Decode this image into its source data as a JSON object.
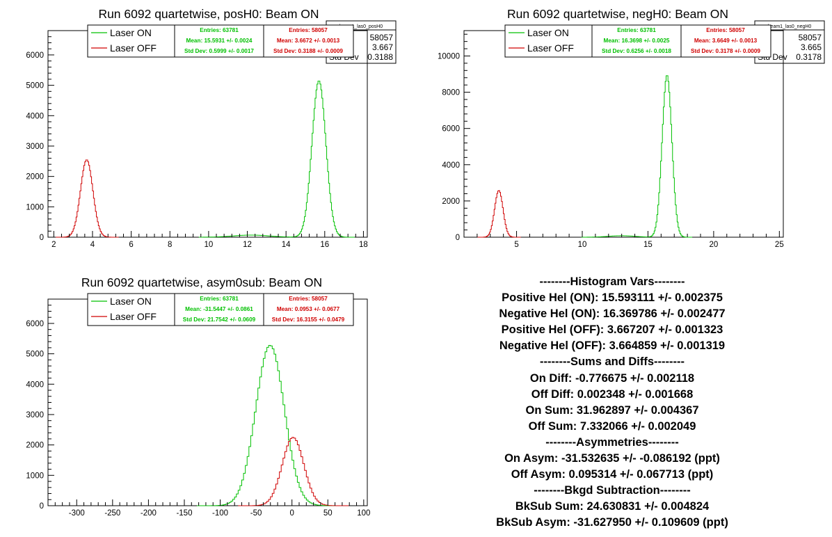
{
  "panels": [
    {
      "title": "Run 6092 quartetwise, posH0: Beam ON",
      "hidden_box": {
        "name": "beam1_las0_posH0",
        "rows": [
          [
            "",
            "58057"
          ],
          [
            "",
            "3.667"
          ],
          [
            "Std Dev",
            "0.3188"
          ]
        ]
      },
      "legend": [
        "Laser ON",
        "Laser OFF"
      ],
      "stats_on": {
        "entries": "Entries: 63781",
        "mean": "Mean: 15.5931 +/- 0.0024",
        "std": "Std Dev: 0.5999 +/- 0.0017"
      },
      "stats_off": {
        "entries": "Entries: 58057",
        "mean": "Mean: 3.6672 +/- 0.0013",
        "std": "Std Dev: 0.3188 +/- 0.0009"
      }
    },
    {
      "title": "Run 6092 quartetwise, negH0: Beam ON",
      "hidden_box": {
        "name": "beam1_las0_negH0",
        "rows": [
          [
            "",
            "58057"
          ],
          [
            "",
            "3.665"
          ],
          [
            "Std Dev",
            "0.3178"
          ]
        ]
      },
      "legend": [
        "Laser ON",
        "Laser OFF"
      ],
      "stats_on": {
        "entries": "Entries: 63781",
        "mean": "Mean: 16.3698 +/- 0.0025",
        "std": "Std Dev: 0.6256 +/- 0.0018"
      },
      "stats_off": {
        "entries": "Entries: 58057",
        "mean": "Mean: 3.6649 +/- 0.0013",
        "std": "Std Dev: 0.3178 +/- 0.0009"
      }
    },
    {
      "title": "Run 6092 quartetwise, asym0sub: Beam ON",
      "hidden_box": null,
      "legend": [
        "Laser ON",
        "Laser OFF"
      ],
      "stats_on": {
        "entries": "Entries: 63781",
        "mean": "Mean: -31.5447 +/- 0.0861",
        "std": "Std Dev: 21.7542 +/- 0.0609"
      },
      "stats_off": {
        "entries": "Entries: 58057",
        "mean": "Mean: 0.0953 +/- 0.0677",
        "std": "Std Dev: 16.3155 +/- 0.0479"
      }
    }
  ],
  "histogram_vars": {
    "lines": [
      "--------Histogram Vars--------",
      "Positive Hel (ON): 15.593111 +/- 0.002375",
      "Negative Hel (ON): 16.369786 +/- 0.002477",
      "Positive Hel (OFF): 3.667207 +/- 0.001323",
      "Negative Hel (OFF): 3.664859 +/- 0.001319",
      "--------Sums and Diffs--------",
      "On Diff: -0.776675 +/- 0.002118",
      "Off Diff: 0.002348 +/- 0.001668",
      "On Sum: 31.962897 +/- 0.004367",
      "Off Sum: 7.332066 +/- 0.002049",
      "--------Asymmetries--------",
      "On Asym: -31.532635 +/- -0.086192 (ppt)",
      "Off Asym: 0.095314 +/- 0.067713 (ppt)",
      "--------Bkgd Subtraction--------",
      "BkSub Sum: 24.630831 +/- 0.004824",
      "BkSub Asym: -31.627950 +/- 0.109609 (ppt)"
    ]
  },
  "colors": {
    "laser_on": "#00c000",
    "laser_off": "#d00000",
    "axis": "#000000"
  },
  "chart_data": [
    {
      "type": "histogram",
      "title": "Run 6092 quartetwise, posH0: Beam ON",
      "xlim": [
        1.7,
        18.2
      ],
      "ylim": [
        0,
        6800
      ],
      "xticks": [
        2,
        4,
        6,
        8,
        10,
        12,
        14,
        16,
        18
      ],
      "yticks": [
        0,
        1000,
        2000,
        3000,
        4000,
        5000,
        6000
      ],
      "grid": false,
      "legend_position": "top",
      "series": [
        {
          "name": "Laser ON",
          "color": "#00c000",
          "shape": "gaussian",
          "mean": 15.7,
          "sigma": 0.36,
          "peak": 5150,
          "bin_width": 0.05,
          "bump": {
            "mean": 12.2,
            "sigma": 0.9,
            "peak": 70
          }
        },
        {
          "name": "Laser OFF",
          "color": "#d00000",
          "shape": "gaussian",
          "mean": 3.7,
          "sigma": 0.32,
          "peak": 2550,
          "bin_width": 0.05
        }
      ]
    },
    {
      "type": "histogram",
      "title": "Run 6092 quartetwise, negH0: Beam ON",
      "xlim": [
        1.0,
        25.3
      ],
      "ylim": [
        0,
        11400
      ],
      "xticks": [
        5,
        10,
        15,
        20,
        25
      ],
      "yticks": [
        0,
        2000,
        4000,
        6000,
        8000,
        10000
      ],
      "grid": false,
      "legend_position": "top",
      "series": [
        {
          "name": "Laser ON",
          "color": "#00c000",
          "shape": "gaussian",
          "mean": 16.45,
          "sigma": 0.37,
          "peak": 8950,
          "bin_width": 0.07,
          "bump": {
            "mean": 13.0,
            "sigma": 1.0,
            "peak": 80
          }
        },
        {
          "name": "Laser OFF",
          "color": "#d00000",
          "shape": "gaussian",
          "mean": 3.65,
          "sigma": 0.32,
          "peak": 2580,
          "bin_width": 0.07
        }
      ]
    },
    {
      "type": "histogram",
      "title": "Run 6092 quartetwise, asym0sub: Beam ON",
      "xlim": [
        -340,
        105
      ],
      "ylim": [
        0,
        6800
      ],
      "xticks": [
        -300,
        -250,
        -200,
        -150,
        -100,
        -50,
        0,
        50,
        100
      ],
      "yticks": [
        0,
        1000,
        2000,
        3000,
        4000,
        5000,
        6000
      ],
      "grid": false,
      "legend_position": "top",
      "series": [
        {
          "name": "Laser ON",
          "color": "#00c000",
          "shape": "gaussian",
          "mean": -30.5,
          "sigma": 20.0,
          "peak": 5280,
          "bin_width": 2.5
        },
        {
          "name": "Laser OFF",
          "color": "#d00000",
          "shape": "gaussian",
          "mean": 1.5,
          "sigma": 15.0,
          "peak": 2250,
          "bin_width": 2.5
        }
      ]
    }
  ]
}
